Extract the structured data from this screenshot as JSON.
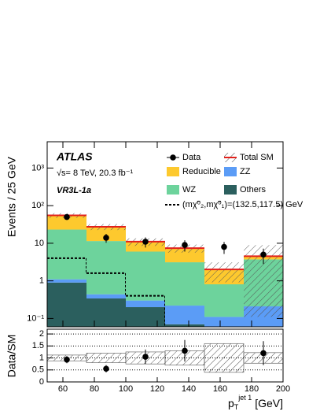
{
  "chart_data": [
    {
      "type": "stacked_histogram",
      "bins": [
        50,
        75,
        100,
        125,
        150,
        175,
        200
      ],
      "xlim": [
        50,
        200
      ],
      "ylim": [
        0.06,
        5000
      ],
      "log_y": true,
      "yticks": [
        {
          "value": 0.1,
          "label": "10⁻¹"
        },
        1,
        10,
        {
          "value": 100,
          "label": "10²"
        },
        {
          "value": 1000,
          "label": "10³"
        }
      ],
      "ylabel": "Events / 25 GeV",
      "experiment": "ATLAS",
      "energy_label": "√s= 8 TeV, 20.3 fb⁻¹",
      "region": "VR3L-1a",
      "stack": [
        {
          "name": "Others",
          "color": "#2b5f5e",
          "values": [
            0.9,
            0.34,
            0.2,
            0.07,
            0.01,
            0.01
          ]
        },
        {
          "name": "ZZ",
          "color": "#5b9cf6",
          "values": [
            0.2,
            0.1,
            0.1,
            0.15,
            0.1,
            0.2
          ]
        },
        {
          "name": "WZ",
          "color": "#6dd39c",
          "values": [
            22,
            11,
            5.7,
            2.9,
            0.7,
            3.5
          ]
        },
        {
          "name": "Reducible",
          "color": "#fdc92e",
          "values": [
            32,
            16,
            5,
            4.3,
            1.2,
            0.8
          ]
        }
      ],
      "total": {
        "name": "Total SM",
        "color": "#e3211c",
        "uncertainty": [
          8,
          5,
          2.5,
          1.8,
          1.1,
          4.4
        ]
      },
      "data": {
        "name": "Data",
        "values": [
          50,
          14,
          11,
          9,
          8,
          5
        ],
        "errors": [
          7,
          3.7,
          3.3,
          3,
          2.8,
          2.2
        ]
      },
      "signal": {
        "name": "(mχ̃⁰₂,mχ̃⁰₁)=(132.5,117.5) GeV",
        "values": [
          4,
          1.6,
          0.4,
          0.05,
          0.02,
          0.02
        ]
      }
    },
    {
      "type": "ratio",
      "xlim": [
        50,
        200
      ],
      "xticks": [
        60,
        80,
        100,
        120,
        140,
        160,
        180,
        200
      ],
      "xlabel": {
        "base": "p",
        "sub": "T",
        "sup": "jet 1",
        "unit": " [GeV]"
      },
      "ylim": [
        0,
        2.2
      ],
      "yticks": [
        0,
        0.5,
        1,
        1.5,
        2
      ],
      "ylabel": "Data/SM",
      "reference": 1,
      "grid": true,
      "values": [
        0.93,
        0.55,
        1.05,
        1.3,
        null,
        1.2
      ],
      "errors": [
        0.15,
        0.15,
        0.3,
        0.45,
        null,
        0.5
      ],
      "uncertainty": [
        0.12,
        0.2,
        0.25,
        0.3,
        0.6,
        0.22
      ]
    }
  ]
}
